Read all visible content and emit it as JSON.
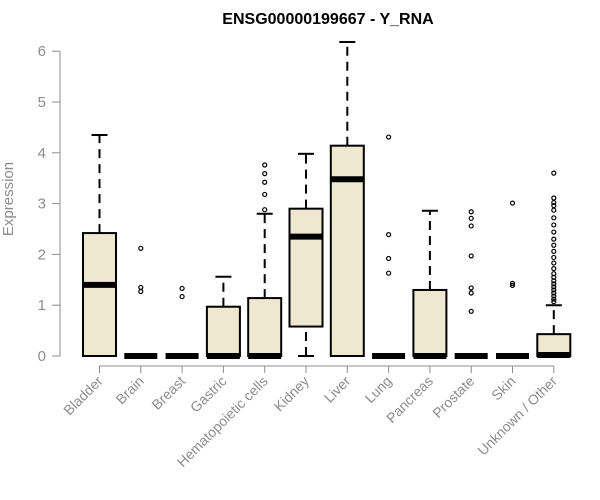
{
  "chart_data": {
    "type": "boxplot",
    "title": "ENSG00000199667 - Y_RNA",
    "xlabel": "",
    "ylabel": "Expression",
    "ylim": [
      0,
      6.2
    ],
    "yticks": [
      0,
      1,
      2,
      3,
      4,
      5,
      6
    ],
    "box_color": "#efe8d0",
    "categories": [
      "Bladder",
      "Brain",
      "Breast",
      "Gastric",
      "Hematopoietic cells",
      "Kidney",
      "Liver",
      "Lung",
      "Pancreas",
      "Prostate",
      "Skin",
      "Unknown / Other"
    ],
    "boxes": [
      {
        "q1": 0,
        "median": 1.4,
        "q3": 2.42,
        "whisker_low": 0,
        "whisker_high": 4.35,
        "outliers": []
      },
      {
        "q1": 0,
        "median": 0,
        "q3": 0,
        "whisker_low": 0,
        "whisker_high": 0,
        "outliers": [
          2.12,
          1.35,
          1.27
        ]
      },
      {
        "q1": 0,
        "median": 0,
        "q3": 0,
        "whisker_low": 0,
        "whisker_high": 0,
        "outliers": [
          1.33,
          1.17
        ]
      },
      {
        "q1": 0,
        "median": 0,
        "q3": 0.97,
        "whisker_low": 0,
        "whisker_high": 1.56,
        "outliers": []
      },
      {
        "q1": 0,
        "median": 0,
        "q3": 1.14,
        "whisker_low": 0,
        "whisker_high": 2.8,
        "outliers": [
          3.76,
          3.59,
          3.42,
          3.18,
          2.88
        ]
      },
      {
        "q1": 0.58,
        "median": 2.35,
        "q3": 2.9,
        "whisker_low": 0,
        "whisker_high": 3.98,
        "outliers": []
      },
      {
        "q1": 0,
        "median": 3.48,
        "q3": 4.14,
        "whisker_low": 0,
        "whisker_high": 6.18,
        "outliers": []
      },
      {
        "q1": 0,
        "median": 0,
        "q3": 0,
        "whisker_low": 0,
        "whisker_high": 0,
        "outliers": [
          4.31,
          2.39,
          1.92,
          1.63
        ]
      },
      {
        "q1": 0,
        "median": 0,
        "q3": 1.3,
        "whisker_low": 0,
        "whisker_high": 2.86,
        "outliers": []
      },
      {
        "q1": 0,
        "median": 0,
        "q3": 0,
        "whisker_low": 0,
        "whisker_high": 0,
        "outliers": [
          2.84,
          2.71,
          2.56,
          1.97,
          1.34,
          1.24,
          0.88
        ]
      },
      {
        "q1": 0,
        "median": 0,
        "q3": 0,
        "whisker_low": 0,
        "whisker_high": 0,
        "outliers": [
          3.01,
          1.43,
          1.39
        ]
      },
      {
        "q1": 0,
        "median": 0.02,
        "q3": 0.43,
        "whisker_low": 0,
        "whisker_high": 1.0,
        "outliers": [
          3.6,
          3.11,
          3.02,
          2.96,
          2.87,
          2.72,
          2.58,
          2.44,
          2.3,
          2.18,
          2.06,
          1.94,
          1.83,
          1.72,
          1.62,
          1.55,
          1.48,
          1.42,
          1.36,
          1.3,
          1.24,
          1.18,
          1.12,
          1.07
        ]
      }
    ]
  }
}
